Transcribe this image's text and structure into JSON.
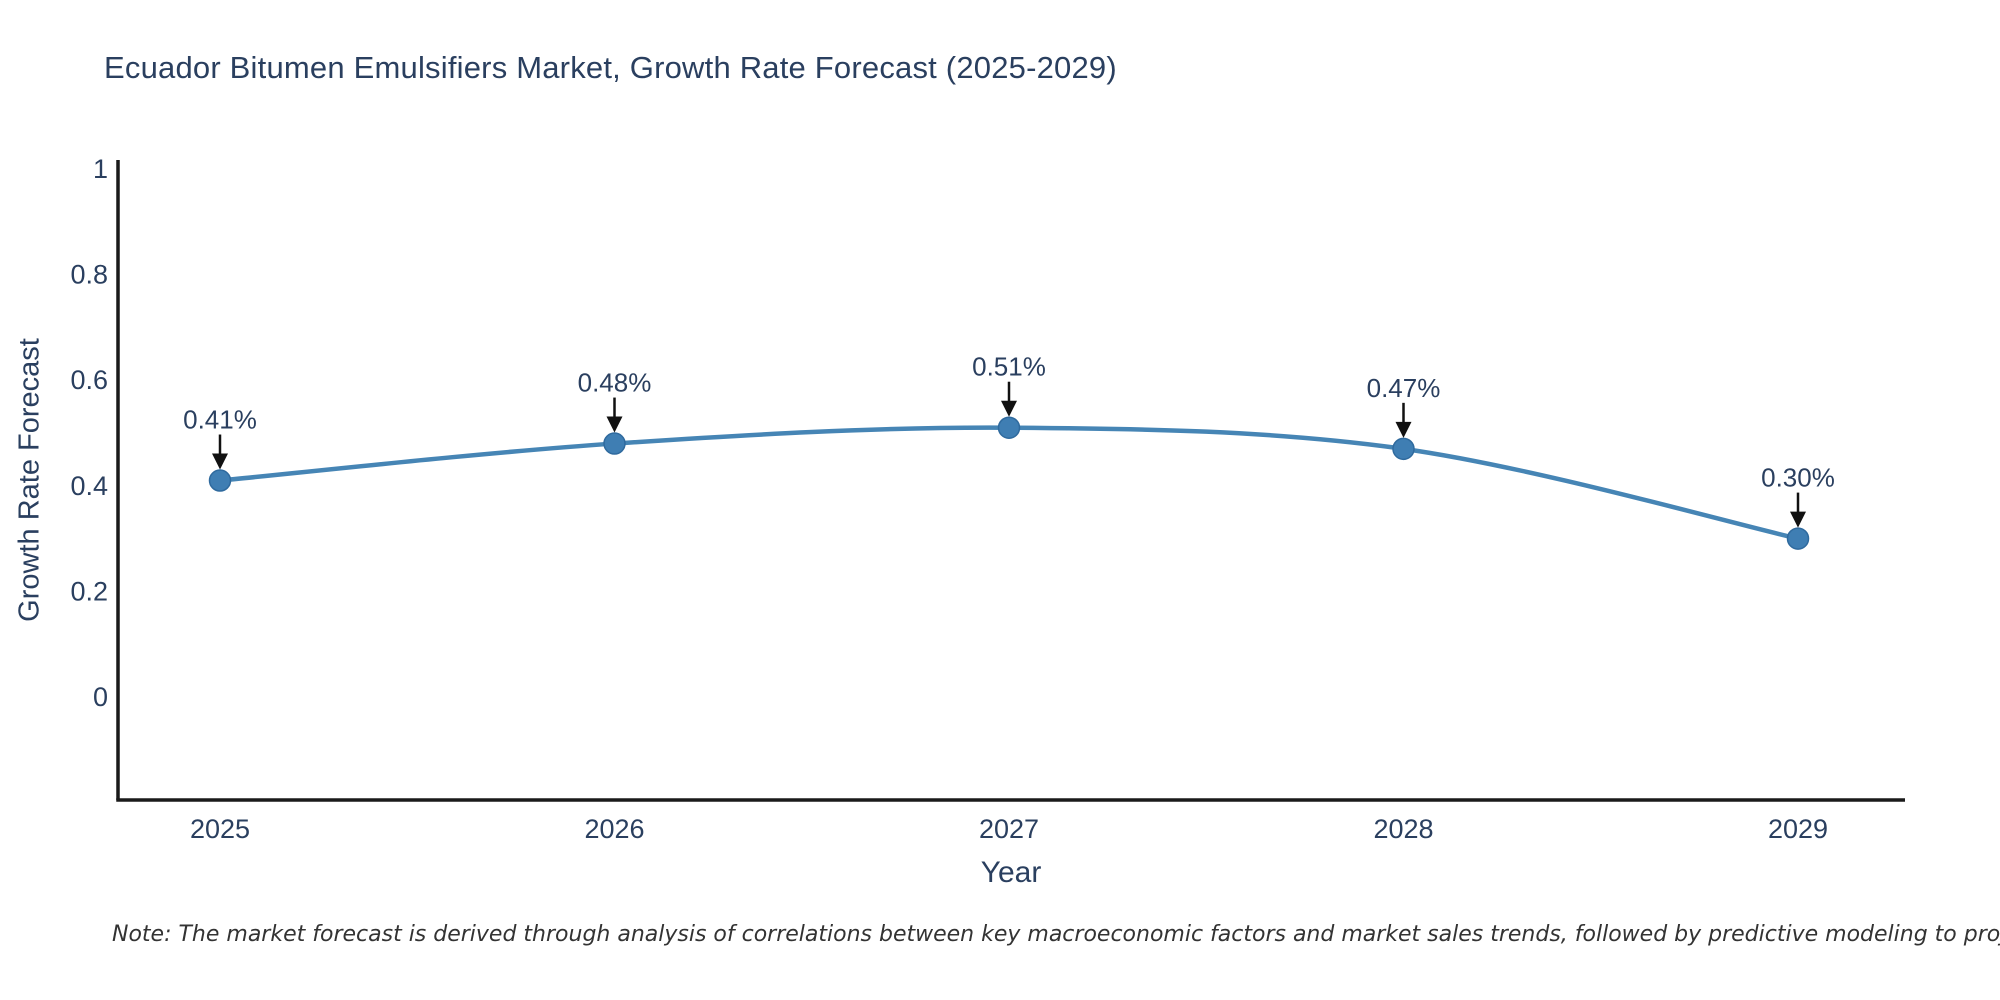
{
  "title": "Ecuador Bitumen Emulsifiers Market, Growth Rate Forecast (2025-2029)",
  "note": "Note: The market forecast is derived through analysis of correlations between key macroeconomic factors and market sales trends, followed by predictive modeling to project future sales",
  "chart_data": {
    "type": "line",
    "line_shape": "spline",
    "title": "Ecuador Bitumen Emulsifiers Market, Growth Rate Forecast (2025-2029)",
    "xlabel": "Year",
    "ylabel": "Growth Rate Forecast",
    "x": [
      2025,
      2026,
      2027,
      2028,
      2029
    ],
    "xtick_labels": [
      "2025",
      "2026",
      "2027",
      "2028",
      "2029"
    ],
    "values": [
      0.41,
      0.48,
      0.51,
      0.47,
      0.3
    ],
    "point_labels": [
      "0.41%",
      "0.48%",
      "0.51%",
      "0.47%",
      "0.30%"
    ],
    "yticks": [
      0,
      0.2,
      0.4,
      0.6,
      0.8,
      1
    ],
    "ytick_labels": [
      "0",
      "0.2",
      "0.4",
      "0.6",
      "0.8",
      "1"
    ],
    "ylim": [
      -0.195,
      1.02
    ],
    "grid": false,
    "legend": "none",
    "colors": {
      "line": "#4685b5",
      "marker": "#3f7eb3",
      "marker_edge": "#2f6a9e",
      "axis": "#1a1a1a",
      "arrow": "#111111",
      "text": "#2a3f5f",
      "note_text": "#333333",
      "background": "#ffffff"
    }
  }
}
